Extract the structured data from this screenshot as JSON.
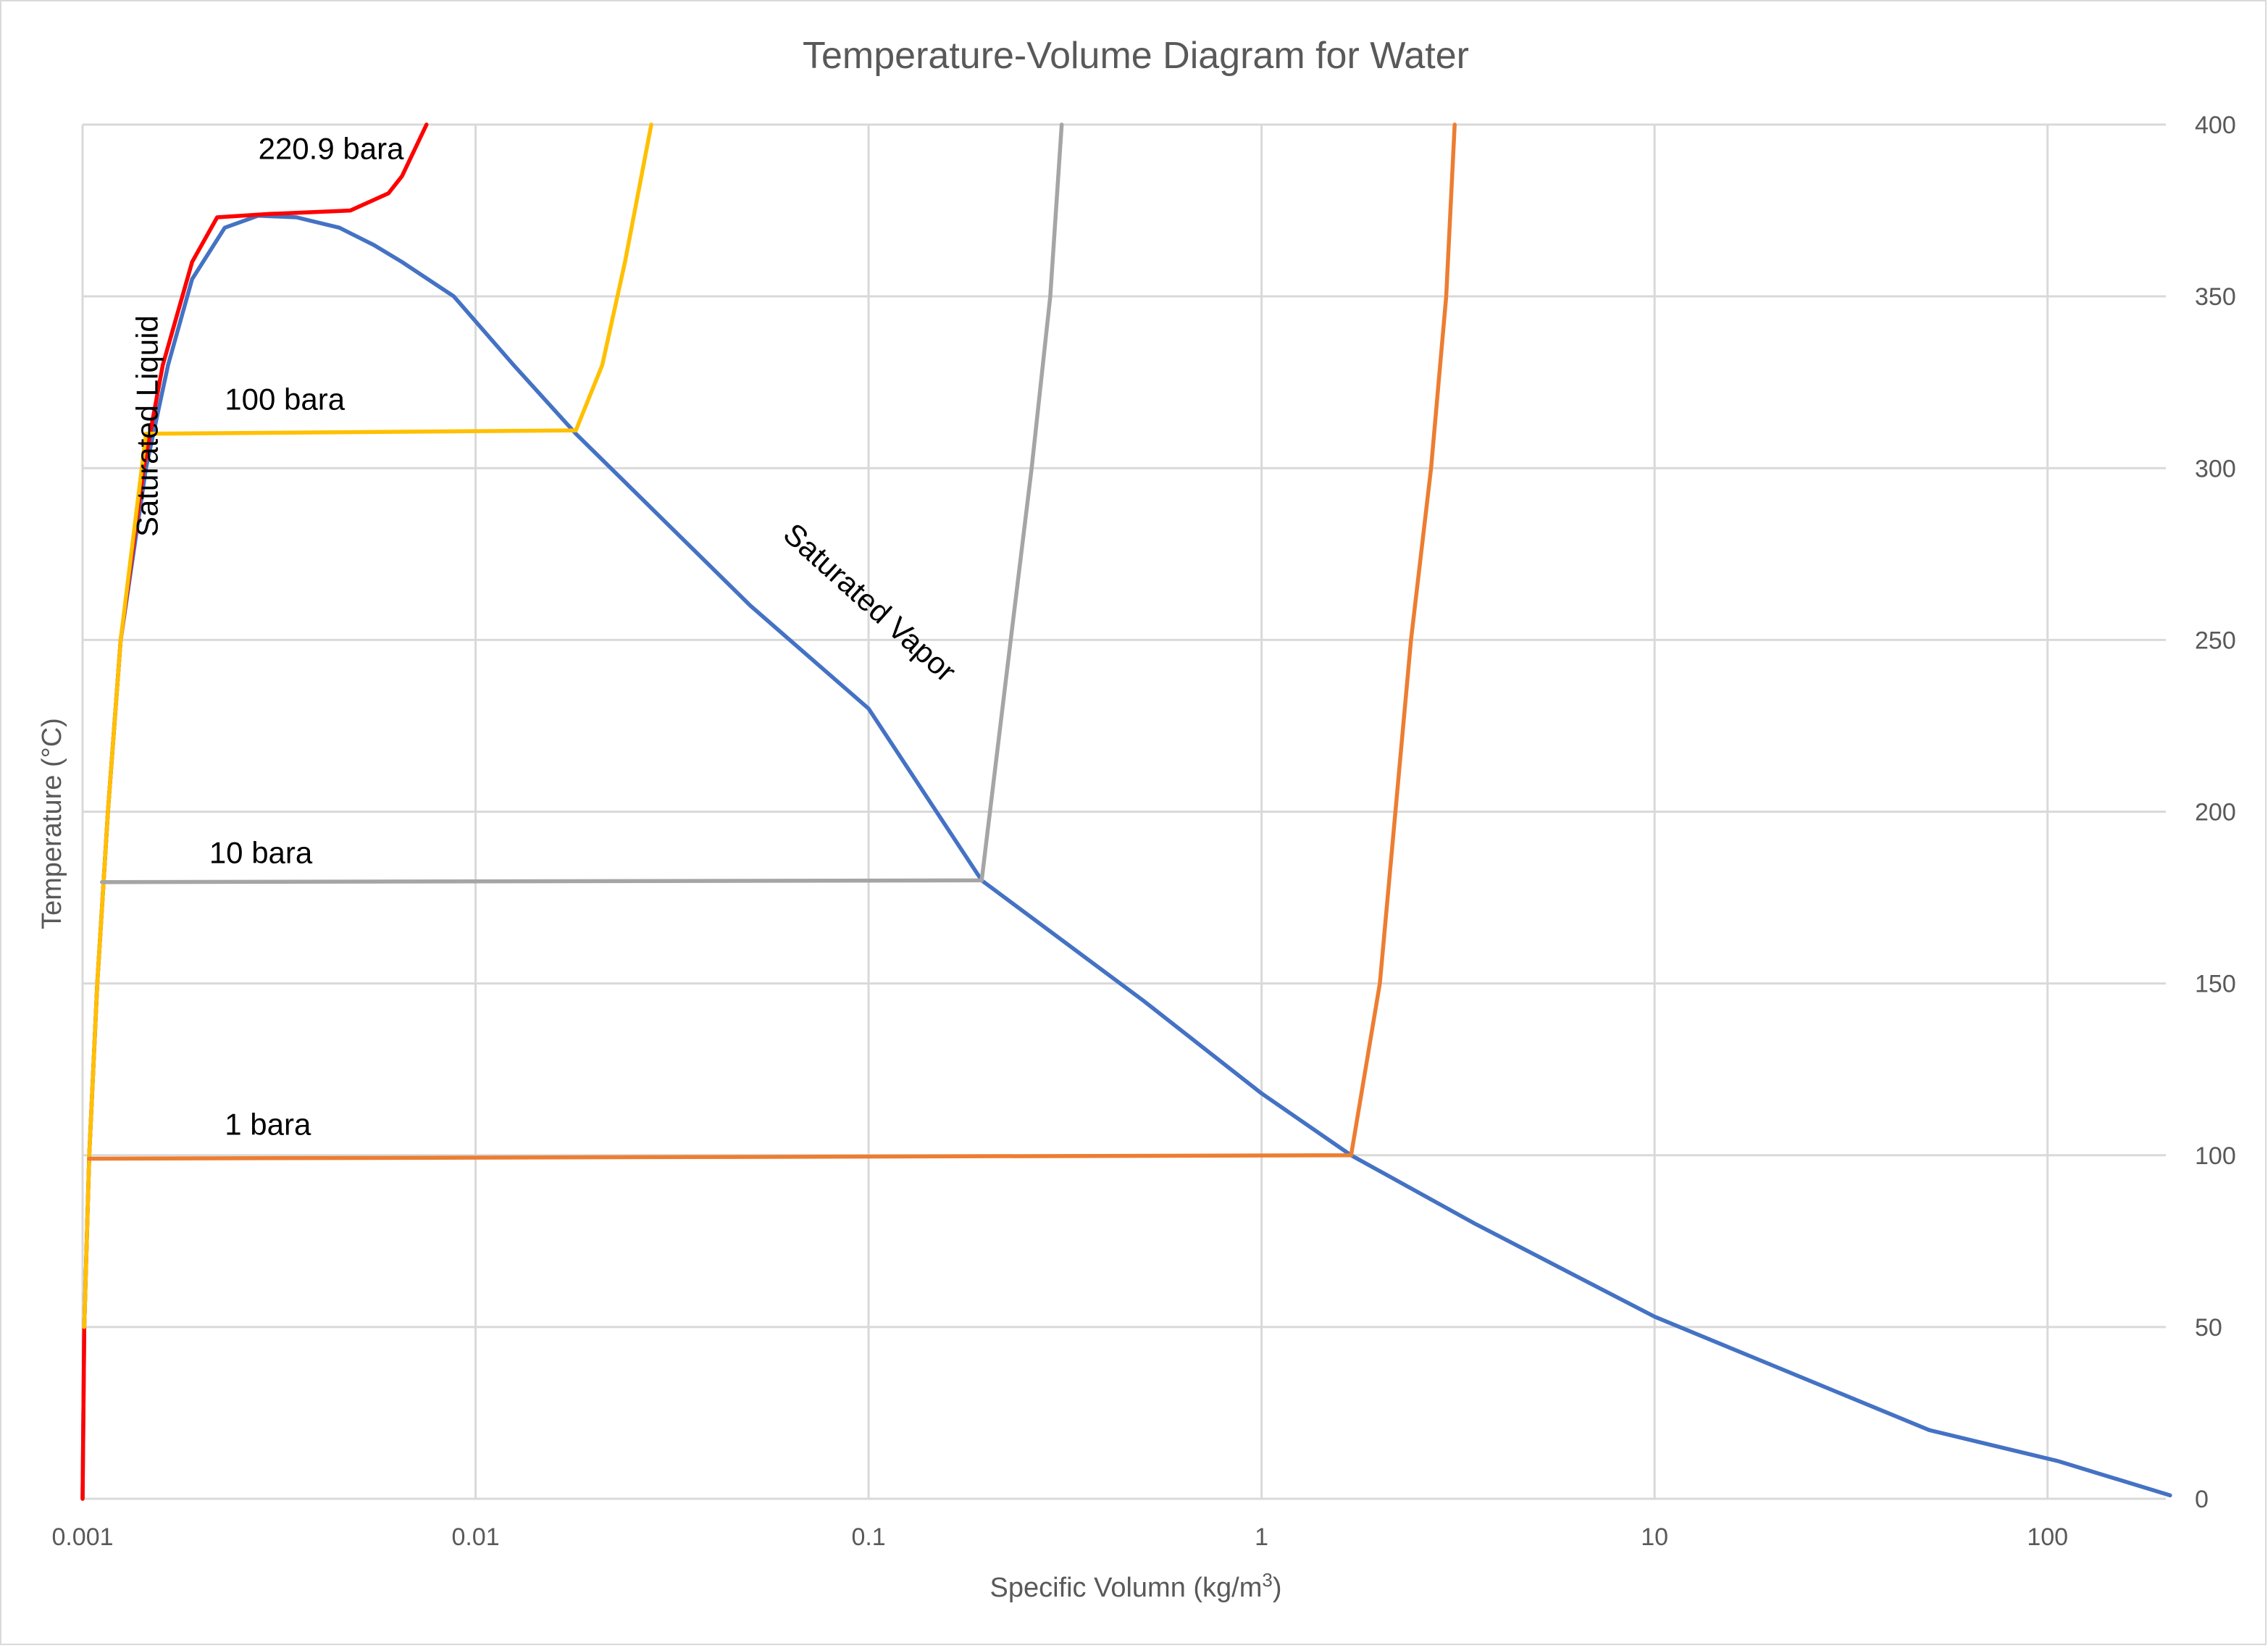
{
  "chart_data": {
    "type": "line",
    "title": "Temperature-Volume Diagram for Water",
    "xlabel": "Specific Volumn (kg/m",
    "xlabel_superscript": "3",
    "xlabel_suffix": ")",
    "ylabel": "Temperature (°C)",
    "x_scale": "log",
    "xlim": [
      0.001,
      200
    ],
    "ylim": [
      0,
      400
    ],
    "x_ticks": [
      "0.001",
      "0.01",
      "0.1",
      "1",
      "10",
      "100"
    ],
    "y_ticks": [
      "0",
      "50",
      "100",
      "150",
      "200",
      "250",
      "300",
      "350",
      "400"
    ],
    "y_axis_position": "right",
    "grid": true,
    "legend": "none",
    "annotations": [
      {
        "text": "220.9 bara",
        "x": 0.0028,
        "y": 390
      },
      {
        "text": "100 bara",
        "x": 0.0023,
        "y": 317
      },
      {
        "text": "10 bara",
        "x": 0.0021,
        "y": 185
      },
      {
        "text": "1 bara",
        "x": 0.0023,
        "y": 106
      },
      {
        "text": "Saturated Liquid",
        "x": 0.00155,
        "y": 280
      },
      {
        "text": "Saturated Vapor",
        "x": 0.06,
        "y": 280
      }
    ],
    "series": [
      {
        "name": "Saturated Liquid/Vapor dome",
        "color": "#4472c4",
        "points": [
          [
            0.001,
            0
          ],
          [
            0.00101,
            50
          ],
          [
            0.00104,
            100
          ],
          [
            0.00109,
            150
          ],
          [
            0.00116,
            200
          ],
          [
            0.00125,
            250
          ],
          [
            0.00145,
            300
          ],
          [
            0.00165,
            330
          ],
          [
            0.0019,
            355
          ],
          [
            0.0023,
            370
          ],
          [
            0.0028,
            373.5
          ],
          [
            0.0035,
            373
          ],
          [
            0.0045,
            370
          ],
          [
            0.0055,
            365
          ],
          [
            0.0065,
            360
          ],
          [
            0.0088,
            350
          ],
          [
            0.0125,
            330
          ],
          [
            0.018,
            310
          ],
          [
            0.03,
            285
          ],
          [
            0.05,
            260
          ],
          [
            0.1,
            230
          ],
          [
            0.194,
            180
          ],
          [
            0.5,
            145
          ],
          [
            1.0,
            118
          ],
          [
            1.69,
            100
          ],
          [
            3.5,
            80
          ],
          [
            10,
            53
          ],
          [
            50,
            20
          ],
          [
            106,
            11
          ],
          [
            205,
            1
          ]
        ]
      },
      {
        "name": "220.9 bara",
        "color": "#ff0000",
        "points": [
          [
            0.001,
            0
          ],
          [
            0.00101,
            50
          ],
          [
            0.00104,
            100
          ],
          [
            0.00109,
            150
          ],
          [
            0.00116,
            200
          ],
          [
            0.00125,
            250
          ],
          [
            0.00143,
            300
          ],
          [
            0.0016,
            330
          ],
          [
            0.0019,
            360
          ],
          [
            0.0022,
            373
          ],
          [
            0.003,
            374
          ],
          [
            0.0048,
            375
          ],
          [
            0.006,
            380
          ],
          [
            0.0065,
            385
          ],
          [
            0.0075,
            400
          ]
        ]
      },
      {
        "name": "100 bara",
        "color": "#ffc000",
        "points": [
          [
            0.00101,
            50
          ],
          [
            0.00104,
            100
          ],
          [
            0.00109,
            150
          ],
          [
            0.00116,
            200
          ],
          [
            0.00125,
            250
          ],
          [
            0.00145,
            310
          ],
          [
            0.018,
            311
          ],
          [
            0.021,
            330
          ],
          [
            0.024,
            360
          ],
          [
            0.028,
            400
          ]
        ]
      },
      {
        "name": "10 bara",
        "color": "#a5a5a5",
        "points": [
          [
            0.00112,
            179.5
          ],
          [
            0.194,
            180
          ],
          [
            0.23,
            250
          ],
          [
            0.26,
            300
          ],
          [
            0.29,
            350
          ],
          [
            0.31,
            400
          ]
        ]
      },
      {
        "name": "1 bara",
        "color": "#ed7d31",
        "points": [
          [
            0.00104,
            99
          ],
          [
            1.69,
            100
          ],
          [
            2.0,
            150
          ],
          [
            2.4,
            250
          ],
          [
            2.7,
            300
          ],
          [
            2.95,
            350
          ],
          [
            3.1,
            400
          ]
        ]
      }
    ]
  }
}
